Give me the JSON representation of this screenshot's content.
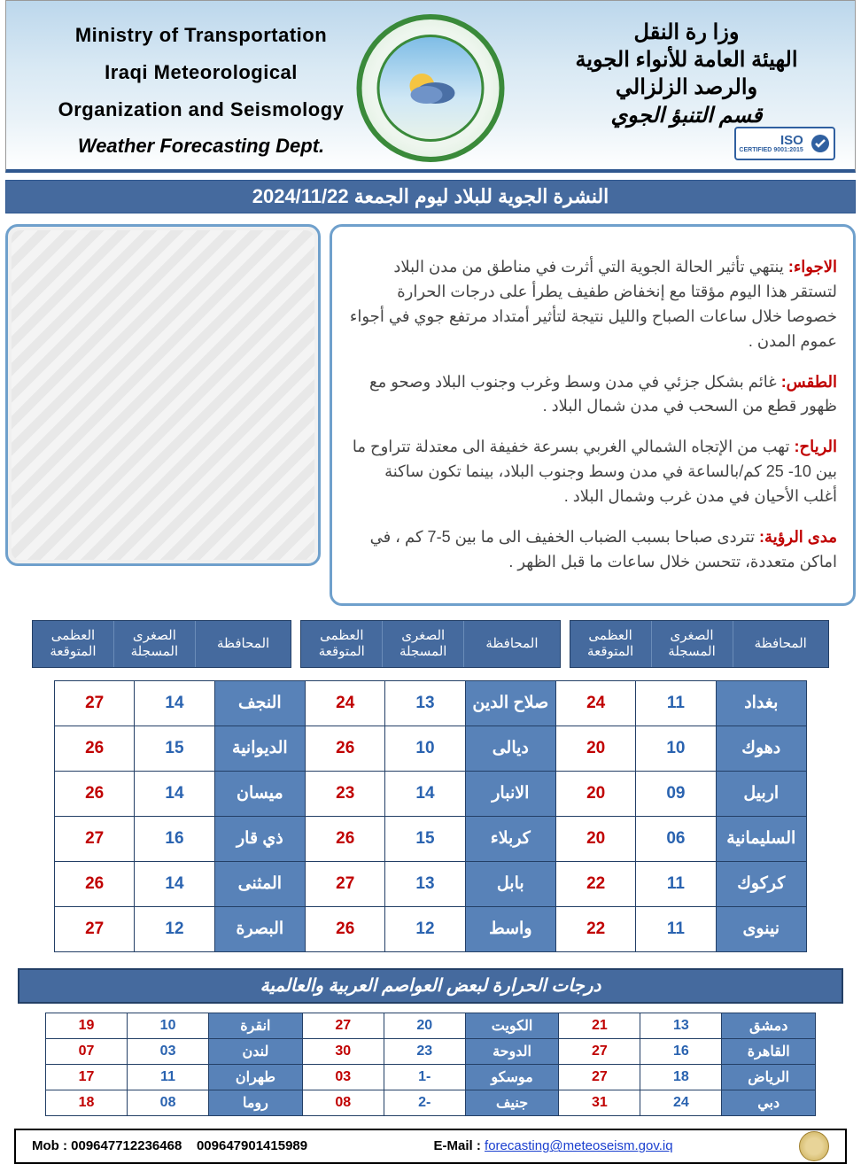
{
  "colors": {
    "bar_bg": "#456a9e",
    "bar_border": "#2f578f",
    "gov_cell_bg": "#5882b8",
    "max_color": "#c00000",
    "min_color": "#2a63b0",
    "box_border": "#6fa0cc",
    "label_red": "#c00000"
  },
  "header": {
    "left_line1": "Ministry of Transportation",
    "left_line2": "Iraqi Meteorological",
    "left_line3": "Organization and Seismology",
    "left_line4": "Weather Forecasting Dept.",
    "right_line1": "وزا رة النقل",
    "right_line2": "الهيئة العامة للأنواء الجوية",
    "right_line3": "والرصد الزلزالي",
    "right_line4": "قسم التنبؤ الجوي",
    "iso_text": "ISO",
    "iso_sub": "9001:2015 CERTIFIED"
  },
  "title": "النشرة الجوية للبلاد ليوم الجمعة 2024/11/22",
  "description": {
    "l1": "الاجواء:",
    "d1": " ينتهي تأثير الحالة الجوية التي أثرت في مناطق من مدن البلاد لتستقر هذا اليوم مؤقتا مع إنخفاض طفيف يطرأ على درجات الحرارة خصوصا خلال ساعات الصباح والليل نتيجة لتأثير أمتداد مرتفع جوي في أجواء عموم المدن .",
    "l2": "الطقس:",
    "d2": " غائم بشكل جزئي في مدن وسط وغرب وجنوب البلاد وصحو مع ظهور قطع من السحب في مدن شمال البلاد .",
    "l3": "الرياح:",
    "d3": " تهب من الإتجاه الشمالي الغربي بسرعة خفيفة الى معتدلة تتراوح ما بين 10- 25 كم/بالساعة في مدن وسط وجنوب البلاد،  بينما تكون ساكنة أغلب الأحيان في مدن غرب وشمال البلاد .",
    "l4": "مدى الرؤية:",
    "d4": " تتردى صباحا بسبب الضباب الخفيف الى ما بين 5-7 كم ،  في اماكن متعددة، تتحسن خلال ساعات ما قبل الظهر ."
  },
  "table_head": {
    "gov": "المحافظة",
    "min": "الصغرى المسجلة",
    "max": "العظمى المتوقعة"
  },
  "forecast_rows": [
    [
      {
        "gov": "بغداد",
        "min": "11",
        "max": "24"
      },
      {
        "gov": "صلاح الدين",
        "min": "13",
        "max": "24"
      },
      {
        "gov": "النجف",
        "min": "14",
        "max": "27"
      }
    ],
    [
      {
        "gov": "دهوك",
        "min": "10",
        "max": "20"
      },
      {
        "gov": "ديالى",
        "min": "10",
        "max": "26"
      },
      {
        "gov": "الديوانية",
        "min": "15",
        "max": "26"
      }
    ],
    [
      {
        "gov": "اربيل",
        "min": "09",
        "max": "20"
      },
      {
        "gov": "الانبار",
        "min": "14",
        "max": "23"
      },
      {
        "gov": "ميسان",
        "min": "14",
        "max": "26"
      }
    ],
    [
      {
        "gov": "السليمانية",
        "min": "06",
        "max": "20"
      },
      {
        "gov": "كربلاء",
        "min": "15",
        "max": "26"
      },
      {
        "gov": "ذي قار",
        "min": "16",
        "max": "27"
      }
    ],
    [
      {
        "gov": "كركوك",
        "min": "11",
        "max": "22"
      },
      {
        "gov": "بابل",
        "min": "13",
        "max": "27"
      },
      {
        "gov": "المثنى",
        "min": "14",
        "max": "26"
      }
    ],
    [
      {
        "gov": "نينوى",
        "min": "11",
        "max": "22"
      },
      {
        "gov": "واسط",
        "min": "12",
        "max": "26"
      },
      {
        "gov": "البصرة",
        "min": "12",
        "max": "27"
      }
    ]
  ],
  "world_title": "درجات الحرارة لبعض العواصم العربية والعالمية",
  "world_rows": [
    [
      {
        "gov": "دمشق",
        "min": "13",
        "max": "21"
      },
      {
        "gov": "الكويت",
        "min": "20",
        "max": "27"
      },
      {
        "gov": "انقرة",
        "min": "10",
        "max": "19"
      }
    ],
    [
      {
        "gov": "القاهرة",
        "min": "16",
        "max": "27"
      },
      {
        "gov": "الدوحة",
        "min": "23",
        "max": "30"
      },
      {
        "gov": "لندن",
        "min": "03",
        "max": "07"
      }
    ],
    [
      {
        "gov": "الرياض",
        "min": "18",
        "max": "27"
      },
      {
        "gov": "موسكو",
        "min": "-1",
        "max": "03"
      },
      {
        "gov": "طهران",
        "min": "11",
        "max": "17"
      }
    ],
    [
      {
        "gov": "دبي",
        "min": "24",
        "max": "31"
      },
      {
        "gov": "جنيف",
        "min": "-2",
        "max": "08"
      },
      {
        "gov": "روما",
        "min": "08",
        "max": "18"
      }
    ]
  ],
  "footer": {
    "mob_label": "Mob : ",
    "mob1": "009647712236468",
    "mob2": "009647901415989",
    "email_label": "E-Mail : ",
    "email": "forecasting@meteoseism.gov.iq"
  }
}
